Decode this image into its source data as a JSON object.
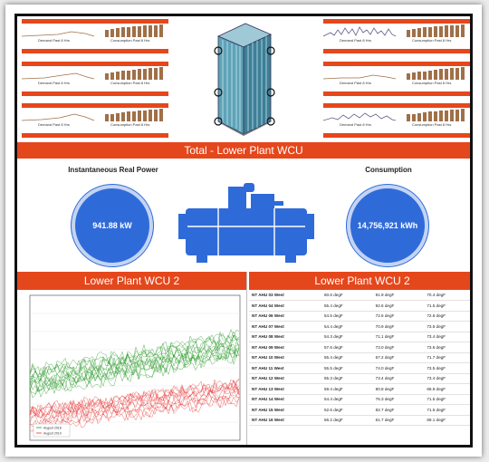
{
  "total_band": {
    "title": "Total - Lower Plant WCU"
  },
  "metrics": {
    "power": {
      "label": "Instantaneous Real Power",
      "value": "941.88 kW"
    },
    "consumption": {
      "label": "Consumption",
      "value": "14,756,921 kWh"
    }
  },
  "mini_panels": {
    "left_caption": "Demand Past 8 Hrs",
    "right_caption": "Consumption Past 8 Hrs"
  },
  "chart_panel": {
    "title": "Lower Plant WCU 2"
  },
  "table_panel": {
    "title": "Lower Plant WCU 2",
    "rows": [
      {
        "name": "NT AHU 03 West",
        "c1": "60.6 degF",
        "c2": "91.9 degF",
        "c3": "70.4 degF"
      },
      {
        "name": "NT AHU 04 West",
        "c1": "55.4 degF",
        "c2": "92.6 degF",
        "c3": "71.5 degF"
      },
      {
        "name": "NT AHU 06 West",
        "c1": "54.5 degF",
        "c2": "72.6 degF",
        "c3": "72.6 degF"
      },
      {
        "name": "NT AHU 07 West",
        "c1": "54.4 degF",
        "c2": "70.9 degF",
        "c3": "73.5 degF"
      },
      {
        "name": "NT AHU 08 West",
        "c1": "54.3 degF",
        "c2": "71.1 degF",
        "c3": "73.4 degF"
      },
      {
        "name": "NT AHU 09 West",
        "c1": "57.6 degF",
        "c2": "73.0 degF",
        "c3": "73.6 degF"
      },
      {
        "name": "NT AHU 10 West",
        "c1": "55.4 degF",
        "c2": "67.2 degF",
        "c3": "71.7 degF"
      },
      {
        "name": "NT AHU 11 West",
        "c1": "55.5 degF",
        "c2": "74.0 degF",
        "c3": "73.5 degF"
      },
      {
        "name": "NT AHU 12 West",
        "c1": "55.3 degF",
        "c2": "73.4 degF",
        "c3": "73.4 degF"
      },
      {
        "name": "NT AHU 13 West",
        "c1": "59.4 degF",
        "c2": "80.8 degF",
        "c3": "69.9 degF"
      },
      {
        "name": "NT AHU 14 West",
        "c1": "54.4 degF",
        "c2": "76.3 degF",
        "c3": "71.5 degF"
      },
      {
        "name": "NT AHU 15 West",
        "c1": "52.6 degF",
        "c2": "82.7 degF",
        "c3": "71.5 degF"
      },
      {
        "name": "NT AHU 16 West",
        "c1": "56.2 degF",
        "c2": "61.7 degF",
        "c3": "69.1 degF"
      }
    ]
  },
  "chart_data": {
    "type": "line",
    "legend": [
      "August 2018",
      "August 2019"
    ],
    "series_colors": [
      "#2a9a2a",
      "#e53b3b"
    ],
    "ylim": [
      -10,
      45
    ]
  },
  "colors": {
    "accent": "#e5471c",
    "metric": "#2f6bd8"
  }
}
